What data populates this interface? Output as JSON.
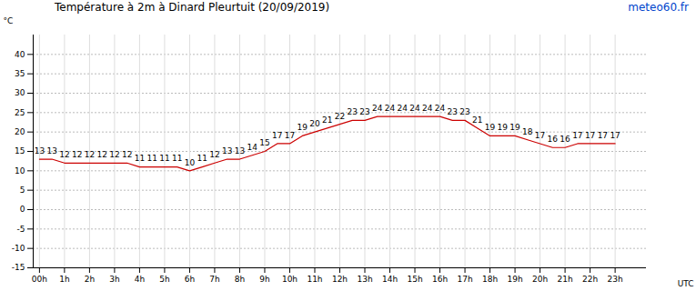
{
  "chart_data": {
    "type": "line",
    "title": "Température à 2m à Dinard Pleurtuit (20/09/2019)",
    "source": "meteo60.fr",
    "x_label": "UTC",
    "y_label": "°C",
    "x": [
      0,
      0.5,
      1,
      1.5,
      2,
      2.5,
      3,
      3.5,
      4,
      4.5,
      5,
      5.5,
      6,
      6.5,
      7,
      7.5,
      8,
      8.5,
      9,
      9.5,
      10,
      10.5,
      11,
      11.5,
      12,
      12.5,
      13,
      13.5,
      14,
      14.5,
      15,
      15.5,
      16,
      16.5,
      17,
      17.5,
      18,
      18.5,
      19,
      19.5,
      20,
      20.5,
      21,
      21.5,
      22,
      22.5,
      23
    ],
    "values": [
      13,
      13,
      12,
      12,
      12,
      12,
      12,
      12,
      11,
      11,
      11,
      11,
      10,
      11,
      12,
      13,
      13,
      14,
      15,
      17,
      17,
      19,
      20,
      21,
      22,
      23,
      23,
      24,
      24,
      24,
      24,
      24,
      24,
      23,
      23,
      21,
      19,
      19,
      19,
      18,
      17,
      16,
      16,
      17,
      17,
      17,
      17
    ],
    "color": "#cc0000",
    "xlim": [
      -0.25,
      24.25
    ],
    "ylim": [
      -15,
      45
    ],
    "xticks": [
      {
        "value": 0,
        "label": "00h"
      },
      {
        "value": 1,
        "label": "1h"
      },
      {
        "value": 2,
        "label": "2h"
      },
      {
        "value": 3,
        "label": "3h"
      },
      {
        "value": 4,
        "label": "4h"
      },
      {
        "value": 5,
        "label": "5h"
      },
      {
        "value": 6,
        "label": "6h"
      },
      {
        "value": 7,
        "label": "7h"
      },
      {
        "value": 8,
        "label": "8h"
      },
      {
        "value": 9,
        "label": "9h"
      },
      {
        "value": 10,
        "label": "10h"
      },
      {
        "value": 11,
        "label": "11h"
      },
      {
        "value": 12,
        "label": "12h"
      },
      {
        "value": 13,
        "label": "13h"
      },
      {
        "value": 14,
        "label": "14h"
      },
      {
        "value": 15,
        "label": "15h"
      },
      {
        "value": 16,
        "label": "16h"
      },
      {
        "value": 17,
        "label": "17h"
      },
      {
        "value": 18,
        "label": "18h"
      },
      {
        "value": 19,
        "label": "19h"
      },
      {
        "value": 20,
        "label": "20h"
      },
      {
        "value": 21,
        "label": "21h"
      },
      {
        "value": 22,
        "label": "22h"
      },
      {
        "value": 23,
        "label": "23h"
      }
    ],
    "yticks": [
      -15,
      -10,
      -5,
      0,
      5,
      10,
      15,
      20,
      25,
      30,
      35,
      40
    ],
    "grid": true,
    "data_labels": true
  }
}
